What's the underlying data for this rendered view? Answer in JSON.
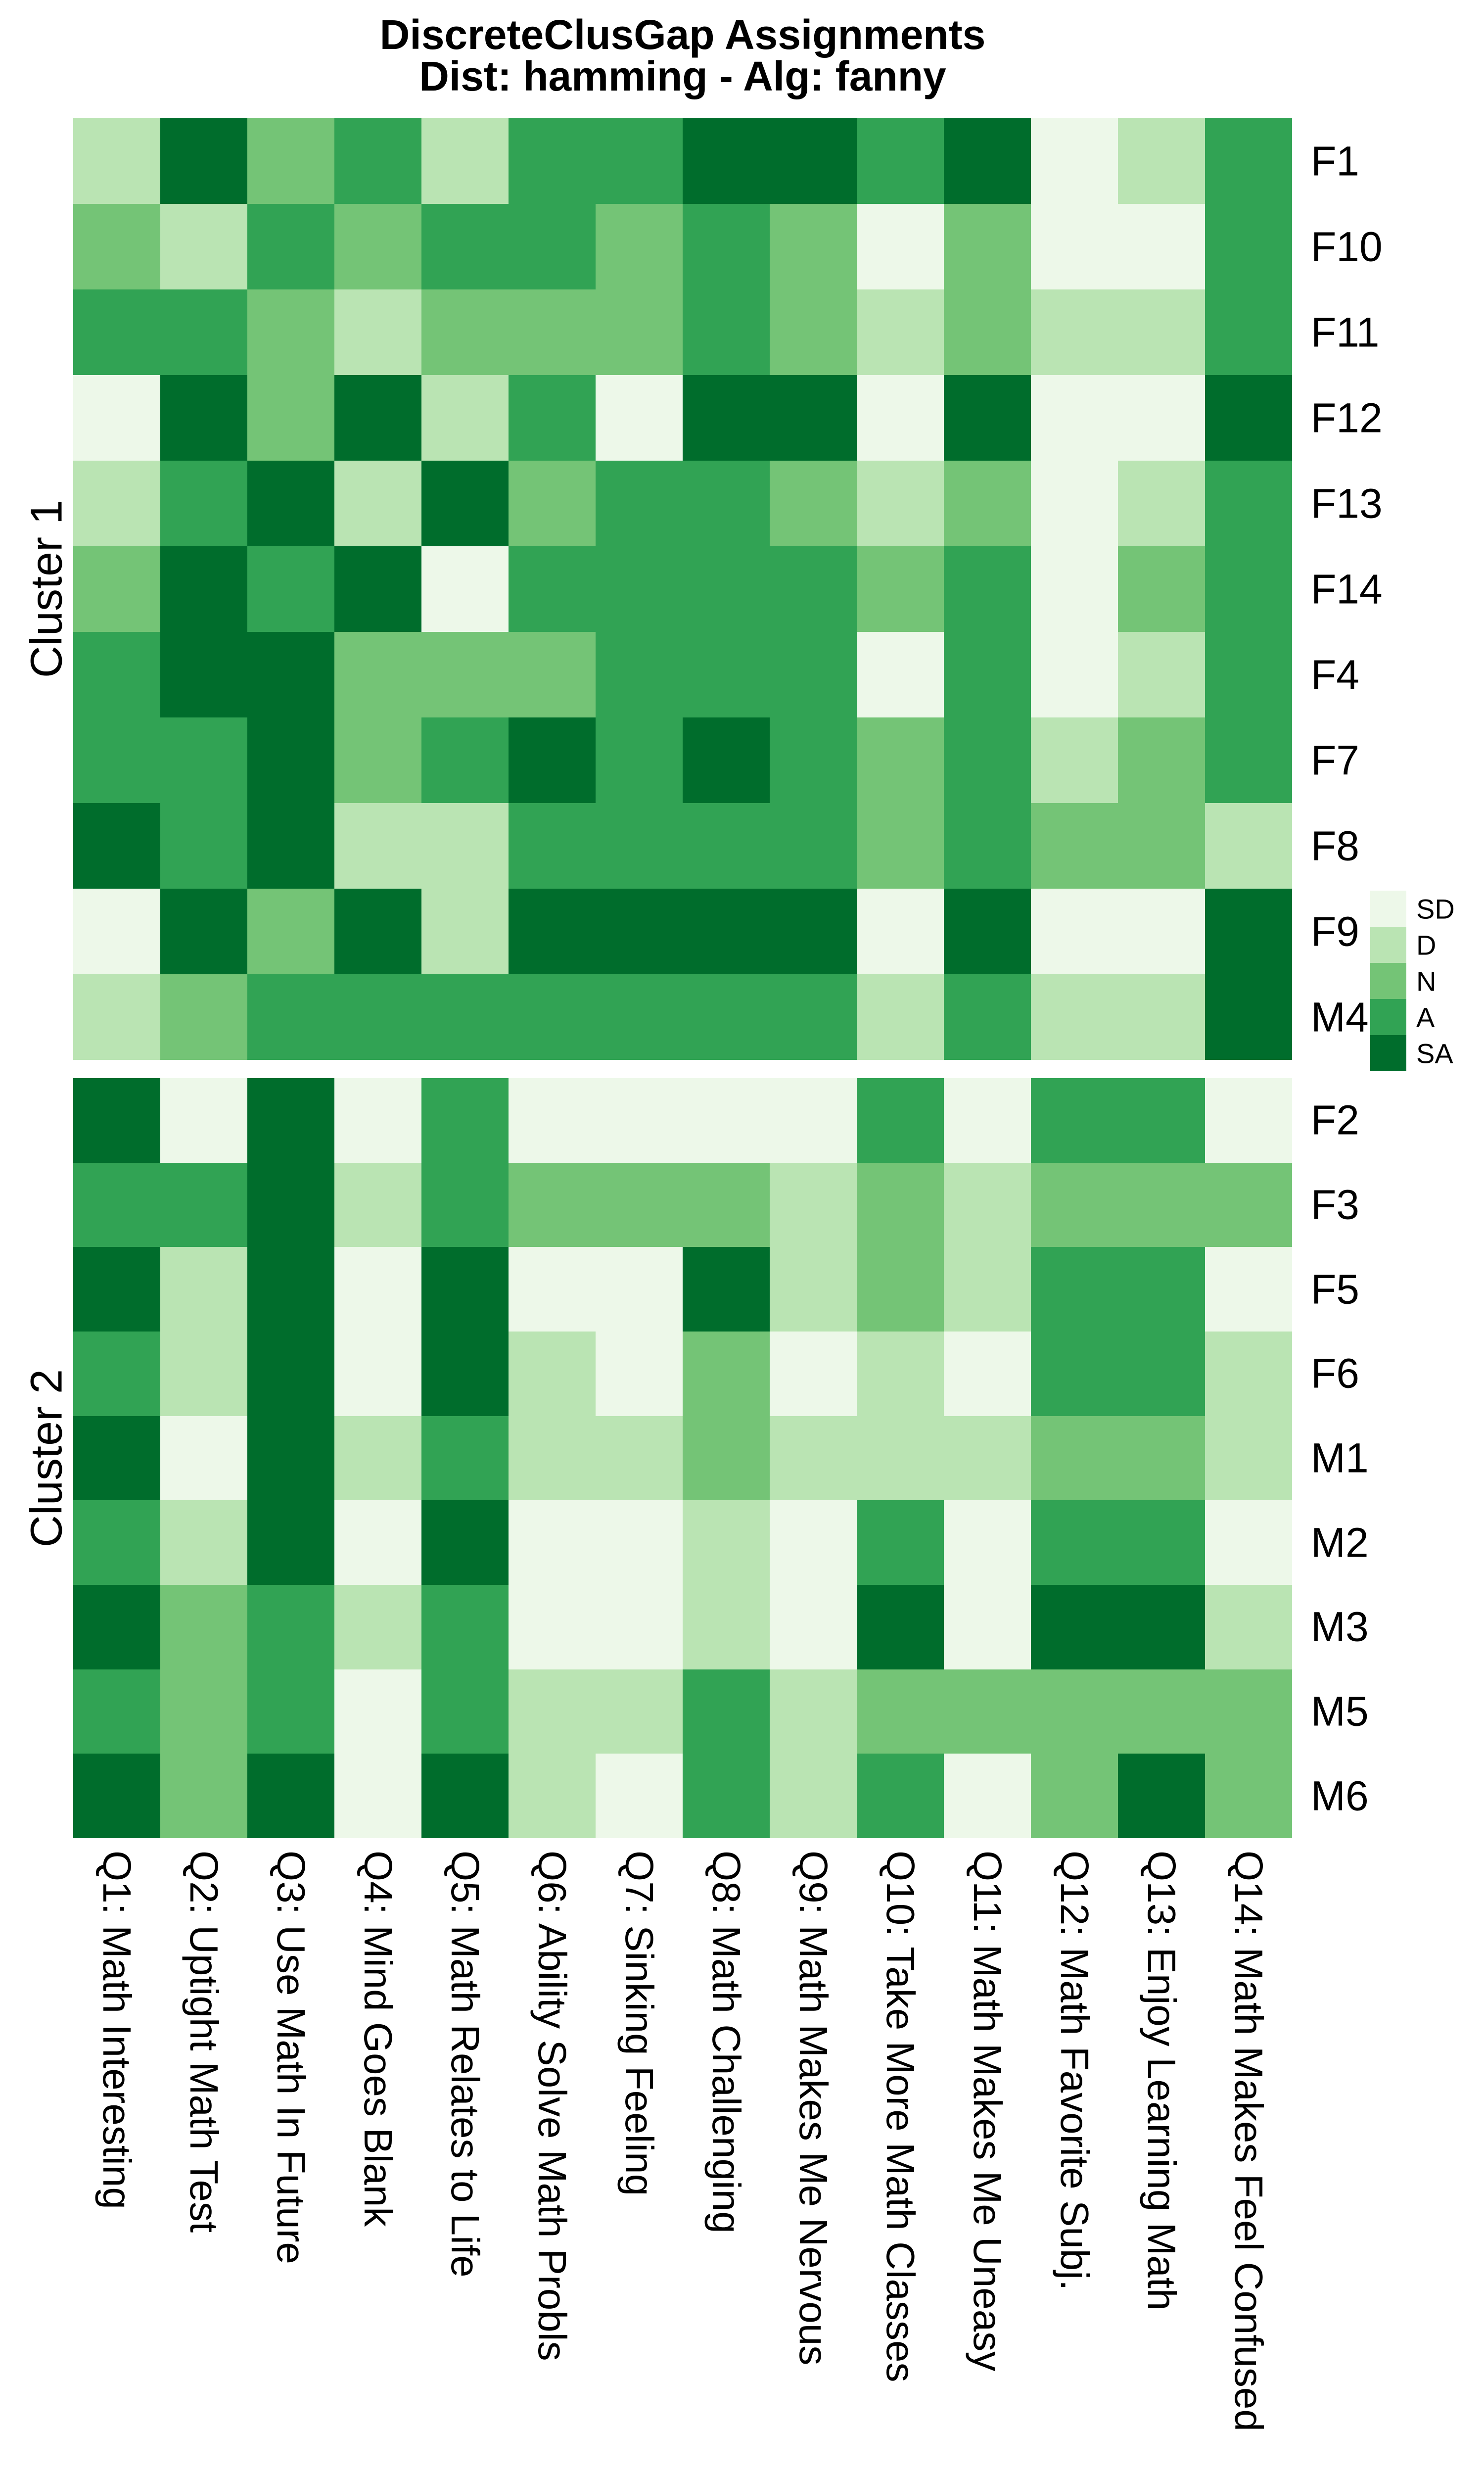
{
  "title": {
    "line1": "DiscreteClusGap Assignments",
    "line2": "Dist: hamming - Alg: fanny"
  },
  "chart_data": {
    "type": "heatmap",
    "palette": {
      "SD": "#EDF8E9",
      "D": "#BAE4B3",
      "N": "#74C476",
      "A": "#31A354",
      "SA": "#006D2C"
    },
    "legend": {
      "labels": [
        "SD",
        "D",
        "N",
        "A",
        "SA"
      ],
      "position": "right"
    },
    "columns": [
      "Q1: Math Interesting",
      "Q2: Uptight Math Test",
      "Q3: Use Math In Future",
      "Q4: Mind Goes Blank",
      "Q5: Math Relates to Life",
      "Q6: Ability Solve Math Probls",
      "Q7: Sinking Feeling",
      "Q8: Math Challenging",
      "Q9: Math Makes Me Nervous",
      "Q10: Take More Math Classes",
      "Q11: Math Makes Me Uneasy",
      "Q12: Math Favorite Subj.",
      "Q13: Enjoy Learning Math",
      "Q14: Math Makes Feel Confused"
    ],
    "clusters": [
      {
        "name": "Cluster 1",
        "rows": [
          {
            "id": "F1",
            "values": [
              "D",
              "SA",
              "N",
              "A",
              "D",
              "A",
              "A",
              "SA",
              "SA",
              "A",
              "SA",
              "SD",
              "D",
              "A"
            ]
          },
          {
            "id": "F10",
            "values": [
              "N",
              "D",
              "A",
              "N",
              "A",
              "A",
              "N",
              "A",
              "N",
              "SD",
              "N",
              "SD",
              "SD",
              "A"
            ]
          },
          {
            "id": "F11",
            "values": [
              "A",
              "A",
              "N",
              "D",
              "N",
              "N",
              "N",
              "A",
              "N",
              "D",
              "N",
              "D",
              "D",
              "A"
            ]
          },
          {
            "id": "F12",
            "values": [
              "SD",
              "SA",
              "N",
              "SA",
              "D",
              "A",
              "SD",
              "SA",
              "SA",
              "SD",
              "SA",
              "SD",
              "SD",
              "SA"
            ]
          },
          {
            "id": "F13",
            "values": [
              "D",
              "A",
              "SA",
              "D",
              "SA",
              "N",
              "A",
              "A",
              "N",
              "D",
              "N",
              "SD",
              "D",
              "A"
            ]
          },
          {
            "id": "F14",
            "values": [
              "N",
              "SA",
              "A",
              "SA",
              "SD",
              "A",
              "A",
              "A",
              "A",
              "N",
              "A",
              "SD",
              "N",
              "A"
            ]
          },
          {
            "id": "F4",
            "values": [
              "A",
              "SA",
              "SA",
              "N",
              "N",
              "N",
              "A",
              "A",
              "A",
              "SD",
              "A",
              "SD",
              "D",
              "A"
            ]
          },
          {
            "id": "F7",
            "values": [
              "A",
              "A",
              "SA",
              "N",
              "A",
              "SA",
              "A",
              "SA",
              "A",
              "N",
              "A",
              "D",
              "N",
              "A"
            ]
          },
          {
            "id": "F8",
            "values": [
              "SA",
              "A",
              "SA",
              "D",
              "D",
              "A",
              "A",
              "A",
              "A",
              "N",
              "A",
              "N",
              "N",
              "D"
            ]
          },
          {
            "id": "F9",
            "values": [
              "SD",
              "SA",
              "N",
              "SA",
              "D",
              "SA",
              "SA",
              "SA",
              "SA",
              "SD",
              "SA",
              "SD",
              "SD",
              "SA"
            ]
          },
          {
            "id": "M4",
            "values": [
              "D",
              "N",
              "A",
              "A",
              "A",
              "A",
              "A",
              "A",
              "A",
              "D",
              "A",
              "D",
              "D",
              "SA"
            ]
          }
        ]
      },
      {
        "name": "Cluster 2",
        "rows": [
          {
            "id": "F2",
            "values": [
              "SA",
              "SD",
              "SA",
              "SD",
              "A",
              "SD",
              "SD",
              "SD",
              "SD",
              "A",
              "SD",
              "A",
              "A",
              "SD"
            ]
          },
          {
            "id": "F3",
            "values": [
              "A",
              "A",
              "SA",
              "D",
              "A",
              "N",
              "N",
              "N",
              "D",
              "N",
              "D",
              "N",
              "N",
              "N"
            ]
          },
          {
            "id": "F5",
            "values": [
              "SA",
              "D",
              "SA",
              "SD",
              "SA",
              "SD",
              "SD",
              "SA",
              "D",
              "N",
              "D",
              "A",
              "A",
              "SD"
            ]
          },
          {
            "id": "F6",
            "values": [
              "A",
              "D",
              "SA",
              "SD",
              "SA",
              "D",
              "SD",
              "N",
              "SD",
              "D",
              "SD",
              "A",
              "A",
              "D"
            ]
          },
          {
            "id": "M1",
            "values": [
              "SA",
              "SD",
              "SA",
              "D",
              "A",
              "D",
              "D",
              "N",
              "D",
              "D",
              "D",
              "N",
              "N",
              "D"
            ]
          },
          {
            "id": "M2",
            "values": [
              "A",
              "D",
              "SA",
              "SD",
              "SA",
              "SD",
              "SD",
              "D",
              "SD",
              "A",
              "SD",
              "A",
              "A",
              "SD"
            ]
          },
          {
            "id": "M3",
            "values": [
              "SA",
              "N",
              "A",
              "D",
              "A",
              "SD",
              "SD",
              "D",
              "SD",
              "SA",
              "SD",
              "SA",
              "SA",
              "D"
            ]
          },
          {
            "id": "M5",
            "values": [
              "A",
              "N",
              "A",
              "SD",
              "A",
              "D",
              "D",
              "A",
              "D",
              "N",
              "N",
              "N",
              "N",
              "N"
            ]
          },
          {
            "id": "M6",
            "values": [
              "SA",
              "N",
              "SA",
              "SD",
              "SA",
              "D",
              "SD",
              "A",
              "D",
              "A",
              "SD",
              "N",
              "SA",
              "N"
            ]
          }
        ]
      }
    ]
  }
}
